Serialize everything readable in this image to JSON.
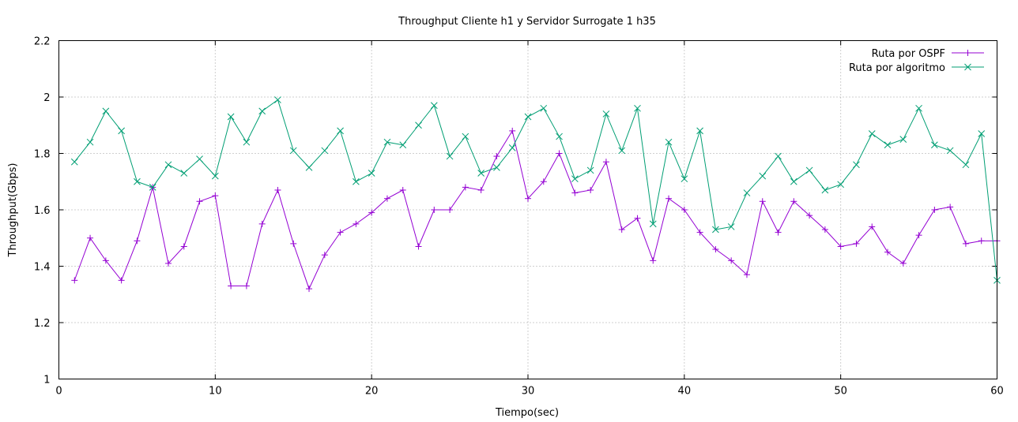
{
  "chart_data": {
    "type": "line",
    "title": "Throughput Cliente h1 y Servidor Surrogate 1 h35",
    "xlabel": "Tiempo(sec)",
    "ylabel": "Throughput(Gbps)",
    "xlim": [
      0,
      60
    ],
    "ylim": [
      1,
      2.2
    ],
    "xticks": [
      0,
      10,
      20,
      30,
      40,
      50,
      60
    ],
    "yticks": [
      1,
      1.2,
      1.4,
      1.6,
      1.8,
      2,
      2.2
    ],
    "ytick_labels": [
      "1",
      "1.2",
      "1.4",
      "1.6",
      "1.8",
      "2",
      "2.2"
    ],
    "grid": true,
    "legend_position": "top-right",
    "x": [
      1,
      2,
      3,
      4,
      5,
      6,
      7,
      8,
      9,
      10,
      11,
      12,
      13,
      14,
      15,
      16,
      17,
      18,
      19,
      20,
      21,
      22,
      23,
      24,
      25,
      26,
      27,
      28,
      29,
      30,
      31,
      32,
      33,
      34,
      35,
      36,
      37,
      38,
      39,
      40,
      41,
      42,
      43,
      44,
      45,
      46,
      47,
      48,
      49,
      50,
      51,
      52,
      53,
      54,
      55,
      56,
      57,
      58,
      59,
      60
    ],
    "series": [
      {
        "name": "Ruta por OSPF",
        "color": "#9400d3",
        "marker": "plus",
        "x": [
          1,
          2,
          3,
          4,
          5,
          6,
          7,
          8,
          9,
          10,
          11,
          12,
          13,
          14,
          15,
          16,
          17,
          18,
          19,
          20,
          21,
          22,
          23,
          24,
          25,
          26,
          27,
          28,
          29,
          30,
          31,
          32,
          33,
          34,
          35,
          36,
          37,
          38,
          39,
          40,
          41,
          42,
          43,
          44,
          45,
          46,
          47,
          48,
          49,
          50,
          51,
          52,
          53,
          54,
          55,
          56,
          57,
          58,
          59,
          60
        ],
        "values": [
          1.35,
          1.5,
          1.42,
          1.35,
          1.49,
          1.68,
          1.41,
          1.47,
          1.63,
          1.65,
          1.33,
          1.33,
          1.55,
          1.67,
          1.48,
          1.32,
          1.44,
          1.52,
          1.55,
          1.59,
          1.64,
          1.67,
          1.47,
          1.6,
          1.6,
          1.68,
          1.67,
          1.79,
          1.88,
          1.64,
          1.7,
          1.8,
          1.66,
          1.67,
          1.77,
          1.53,
          1.57,
          1.42,
          1.64,
          1.6,
          1.52,
          1.46,
          1.42,
          1.37,
          1.63,
          1.52,
          1.63,
          1.58,
          1.53,
          1.47,
          1.48,
          1.54,
          1.45,
          1.41,
          1.51,
          1.6,
          1.61,
          1.48,
          1.49,
          1.49
        ]
      },
      {
        "name": "Ruta por algoritmo",
        "color": "#009e73",
        "marker": "cross",
        "x": [
          1,
          2,
          3,
          4,
          5,
          6,
          7,
          8,
          9,
          10,
          11,
          12,
          13,
          14,
          15,
          16,
          17,
          18,
          19,
          20,
          21,
          22,
          23,
          24,
          25,
          26,
          27,
          28,
          29,
          30,
          31,
          32,
          33,
          34,
          35,
          36,
          37,
          38,
          39,
          40,
          41,
          42,
          43,
          44,
          45,
          46,
          47,
          48,
          49,
          50,
          51,
          52,
          53,
          54,
          55,
          56,
          57,
          58,
          59,
          60
        ],
        "values": [
          1.77,
          1.84,
          1.95,
          1.88,
          1.7,
          1.68,
          1.76,
          1.73,
          1.78,
          1.72,
          1.93,
          1.84,
          1.95,
          1.99,
          1.81,
          1.75,
          1.81,
          1.88,
          1.7,
          1.73,
          1.84,
          1.83,
          1.9,
          1.97,
          1.79,
          1.86,
          1.73,
          1.75,
          1.82,
          1.93,
          1.96,
          1.86,
          1.71,
          1.74,
          1.94,
          1.81,
          1.96,
          1.55,
          1.84,
          1.71,
          1.88,
          1.53,
          1.54,
          1.66,
          1.72,
          1.79,
          1.7,
          1.74,
          1.67,
          1.69,
          1.76,
          1.87,
          1.83,
          1.85,
          1.96,
          1.83,
          1.81,
          1.76,
          1.87,
          1.35
        ]
      }
    ]
  }
}
